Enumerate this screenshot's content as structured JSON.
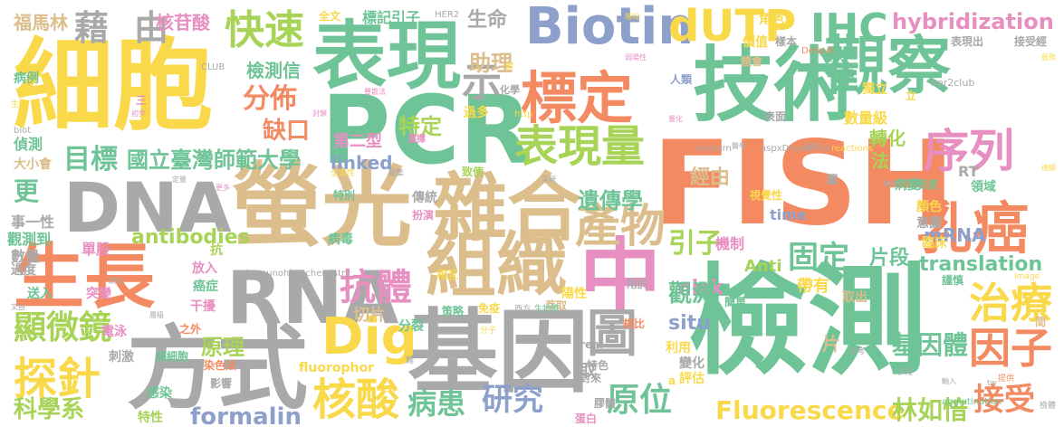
{
  "palette": {
    "yellow": "#f9d94a",
    "orange": "#f48a62",
    "green": "#6ec497",
    "tan": "#dcbd8c",
    "gray": "#a9a9a9",
    "pink": "#e88fc2",
    "blue": "#8da0cb",
    "lime": "#a7d357"
  },
  "words": [
    {
      "text": "細胞",
      "color": "yellow"
    },
    {
      "text": "技術",
      "color": "green"
    },
    {
      "text": "FISH",
      "color": "orange"
    },
    {
      "text": "檢測",
      "color": "green"
    },
    {
      "text": "PCR",
      "color": "green"
    },
    {
      "text": "螢光",
      "color": "tan"
    },
    {
      "text": "基因",
      "color": "gray"
    },
    {
      "text": "方式",
      "color": "gray"
    },
    {
      "text": "生長",
      "color": "orange"
    },
    {
      "text": "表現",
      "color": "green"
    },
    {
      "text": "觀察",
      "color": "green"
    },
    {
      "text": "中",
      "color": "pink"
    },
    {
      "text": "雜合",
      "color": "tan"
    },
    {
      "text": "組織",
      "color": "tan"
    },
    {
      "text": "標定",
      "color": "orange"
    },
    {
      "text": "DNA",
      "color": "gray"
    },
    {
      "text": "RNA",
      "color": "gray"
    },
    {
      "text": "Biotin",
      "color": "blue"
    },
    {
      "text": "乳癌",
      "color": "orange"
    },
    {
      "text": "表現量",
      "color": "lime"
    },
    {
      "text": "序列",
      "color": "pink"
    },
    {
      "text": "產物",
      "color": "tan"
    },
    {
      "text": "Dig",
      "color": "yellow"
    },
    {
      "text": "核酸",
      "color": "yellow"
    },
    {
      "text": "探針",
      "color": "yellow"
    },
    {
      "text": "圖",
      "color": "gray"
    },
    {
      "text": "IHC",
      "color": "green"
    },
    {
      "text": "dUTP",
      "color": "yellow"
    },
    {
      "text": "快速",
      "color": "lime"
    },
    {
      "text": "藉",
      "color": "gray"
    },
    {
      "text": "由",
      "color": "gray"
    },
    {
      "text": "治療",
      "color": "yellow"
    },
    {
      "text": "因子",
      "color": "orange"
    },
    {
      "text": "hybridization",
      "color": "pink"
    },
    {
      "text": "抗體",
      "color": "pink"
    },
    {
      "text": "顯微鏡",
      "color": "lime"
    },
    {
      "text": "研究",
      "color": "blue"
    },
    {
      "text": "病患",
      "color": "green"
    },
    {
      "text": "原位",
      "color": "green"
    },
    {
      "text": "固定",
      "color": "green"
    },
    {
      "text": "接受",
      "color": "orange"
    },
    {
      "text": "分佈",
      "color": "orange"
    },
    {
      "text": "目標",
      "color": "green"
    },
    {
      "text": "國立臺灣師範大學",
      "color": "green"
    },
    {
      "text": "Fluorescence",
      "color": "yellow"
    },
    {
      "text": "林如愔",
      "color": "lime"
    },
    {
      "text": "translation",
      "color": "green"
    },
    {
      "text": "formalin",
      "color": "blue"
    },
    {
      "text": "科學系",
      "color": "lime"
    },
    {
      "text": "原理",
      "color": "lime"
    },
    {
      "text": "遺傳學",
      "color": "green"
    },
    {
      "text": "基因體",
      "color": "green"
    },
    {
      "text": "引子",
      "color": "lime"
    },
    {
      "text": "檢測信",
      "color": "green"
    },
    {
      "text": "示",
      "color": "gray"
    },
    {
      "text": "助理",
      "color": "tan"
    },
    {
      "text": "生命",
      "color": "gray"
    },
    {
      "text": "核苷酸",
      "color": "pink"
    },
    {
      "text": "福馬林",
      "color": "tan"
    },
    {
      "text": "缺口",
      "color": "orange"
    },
    {
      "text": "特定",
      "color": "lime"
    },
    {
      "text": "linked",
      "color": "blue"
    },
    {
      "text": "nick",
      "color": "pink"
    },
    {
      "text": "經由",
      "color": "tan"
    },
    {
      "text": "antibodies",
      "color": "lime"
    },
    {
      "text": "situ",
      "color": "blue"
    },
    {
      "text": "觀測",
      "color": "green"
    },
    {
      "text": "片段",
      "color": "green"
    },
    {
      "text": "Anti",
      "color": "lime"
    },
    {
      "text": "mRNA",
      "color": "blue"
    },
    {
      "text": "轉化",
      "color": "lime"
    },
    {
      "text": "法",
      "color": "lime"
    },
    {
      "text": "更",
      "color": "green"
    },
    {
      "text": "單股",
      "color": "pink"
    },
    {
      "text": "fluorophor",
      "color": "yellow"
    },
    {
      "text": "帶有",
      "color": "yellow"
    },
    {
      "text": "切片",
      "color": "tan"
    },
    {
      "text": "第二型",
      "color": "pink"
    },
    {
      "text": "病毒",
      "color": "green"
    },
    {
      "text": "片",
      "color": "tan"
    },
    {
      "text": "取",
      "color": "gray"
    },
    {
      "text": "數量級",
      "color": "yellow"
    },
    {
      "text": "RT",
      "color": "gray"
    },
    {
      "text": "time",
      "color": "blue"
    },
    {
      "text": "事一性",
      "color": "gray"
    },
    {
      "text": "觀測到",
      "color": "green"
    },
    {
      "text": "數量",
      "color": "gray"
    },
    {
      "text": "過度",
      "color": "gray"
    },
    {
      "text": "大小會",
      "color": "tan"
    },
    {
      "text": "偵測",
      "color": "green"
    },
    {
      "text": "病例",
      "color": "green"
    },
    {
      "text": "標記引子",
      "color": "green"
    },
    {
      "text": "全文",
      "color": "yellow"
    },
    {
      "text": "HER2",
      "color": "gray"
    },
    {
      "text": "角色",
      "color": "yellow"
    },
    {
      "text": "價值",
      "color": "yellow"
    },
    {
      "text": "樣本",
      "color": "gray"
    },
    {
      "text": "體會",
      "color": "tan"
    },
    {
      "text": "表現出",
      "color": "gray"
    },
    {
      "text": "接受經",
      "color": "gray"
    },
    {
      "text": "獨立",
      "color": "yellow"
    },
    {
      "text": "人類",
      "color": "blue"
    },
    {
      "text": "過多",
      "color": "yellow"
    },
    {
      "text": "致使",
      "color": "lime"
    },
    {
      "text": "傳統",
      "color": "gray"
    },
    {
      "text": "扮演",
      "color": "pink"
    },
    {
      "text": "特別",
      "color": "green"
    },
    {
      "text": "突變",
      "color": "pink"
    },
    {
      "text": "放入",
      "color": "pink"
    },
    {
      "text": "癌症",
      "color": "green"
    },
    {
      "text": "干擾",
      "color": "pink"
    },
    {
      "text": "分辨",
      "color": "green"
    },
    {
      "text": "送入",
      "color": "green"
    },
    {
      "text": "電泳",
      "color": "pink"
    },
    {
      "text": "之外",
      "color": "orange"
    },
    {
      "text": "刺激",
      "color": "gray"
    },
    {
      "text": "癌細胞",
      "color": "green"
    },
    {
      "text": "染色法",
      "color": "orange"
    },
    {
      "text": "影響",
      "color": "gray"
    },
    {
      "text": "感染",
      "color": "green"
    },
    {
      "text": "特性",
      "color": "lime"
    },
    {
      "text": "分裂",
      "color": "green"
    },
    {
      "text": "策略",
      "color": "green"
    },
    {
      "text": "免疫",
      "color": "yellow"
    },
    {
      "text": "相互",
      "color": "yellow"
    },
    {
      "text": "特色",
      "color": "gray"
    },
    {
      "text": "對來",
      "color": "gray"
    },
    {
      "text": "real",
      "color": "gray"
    },
    {
      "text": "評估",
      "color": "yellow"
    },
    {
      "text": "變化",
      "color": "gray"
    },
    {
      "text": "利用",
      "color": "yellow"
    },
    {
      "text": "相比",
      "color": "orange"
    },
    {
      "text": "取出",
      "color": "tan"
    },
    {
      "text": "簡單",
      "color": "green"
    },
    {
      "text": "機制",
      "color": "pink"
    },
    {
      "text": "臨床",
      "color": "yellow"
    },
    {
      "text": "意圖",
      "color": "gray"
    },
    {
      "text": "顏色",
      "color": "yellow"
    },
    {
      "text": "視覺性",
      "color": "yellow"
    },
    {
      "text": "病變",
      "color": "green"
    },
    {
      "text": "表皮",
      "color": "green"
    },
    {
      "text": "領域",
      "color": "green"
    },
    {
      "text": "單",
      "color": "gray"
    },
    {
      "text": "表面",
      "color": "gray"
    },
    {
      "text": "陽性",
      "color": "yellow"
    },
    {
      "text": "用於",
      "color": "gray"
    },
    {
      "text": "萃取",
      "color": "tan"
    },
    {
      "text": "膠體",
      "color": "gray"
    },
    {
      "text": "蛋白",
      "color": "pink"
    },
    {
      "text": "謹慎",
      "color": "green"
    },
    {
      "text": "間",
      "color": "tan"
    },
    {
      "text": "a",
      "color": "yellow"
    },
    {
      "text": "抗",
      "color": "lime"
    },
    {
      "text": "三",
      "color": "pink"
    },
    {
      "text": "立",
      "color": "yellow"
    },
    {
      "text": "化學",
      "color": "gray"
    },
    {
      "text": "immunohistochemistry",
      "color": "gray"
    },
    {
      "text": "agglutination",
      "color": "green"
    },
    {
      "text": "her2club",
      "color": "gray"
    },
    {
      "text": "CLUB",
      "color": "gray"
    },
    {
      "text": "western",
      "color": "gray"
    },
    {
      "text": "aspxDrosophila",
      "color": "gray"
    },
    {
      "text": "reactions",
      "color": "yellow"
    },
    {
      "text": "http",
      "color": "yellow"
    },
    {
      "text": "Default",
      "color": "orange"
    },
    {
      "text": "blot",
      "color": "gray"
    },
    {
      "text": "Image",
      "color": "yellow"
    },
    {
      "text": "生物",
      "color": "yellow"
    },
    {
      "text": "全面性",
      "color": "yellow"
    },
    {
      "text": "凝集",
      "color": "gray"
    },
    {
      "text": "分子",
      "color": "yellow"
    },
    {
      "text": "生物體",
      "color": "green"
    },
    {
      "text": "西方",
      "color": "gray"
    },
    {
      "text": "參考",
      "color": "gray"
    },
    {
      "text": "手段",
      "color": "gray"
    },
    {
      "text": "提供",
      "color": "orange"
    },
    {
      "text": "檢體",
      "color": "gray"
    },
    {
      "text": "難",
      "color": "gray"
    },
    {
      "text": "層級",
      "color": "gray"
    },
    {
      "text": "網站",
      "color": "gray"
    },
    {
      "text": "文由",
      "color": "gray"
    },
    {
      "text": "定量",
      "color": "gray"
    },
    {
      "text": "更多",
      "color": "pink"
    },
    {
      "text": "呈現",
      "color": "gray"
    },
    {
      "text": "量化",
      "color": "pink"
    },
    {
      "text": "弱陽性",
      "color": "pink"
    },
    {
      "text": "操作",
      "color": "gray"
    },
    {
      "text": "醫學",
      "color": "gray"
    },
    {
      "text": "轉由",
      "color": "gray"
    },
    {
      "text": "階段",
      "color": "yellow"
    },
    {
      "text": "連續",
      "color": "yellow"
    },
    {
      "text": "體",
      "color": "yellow"
    },
    {
      "text": "初步",
      "color": "pink"
    },
    {
      "text": "封鎖",
      "color": "pink"
    },
    {
      "text": "選擇",
      "color": "pink"
    },
    {
      "text": "豐散法",
      "color": "pink"
    },
    {
      "text": "tw",
      "color": "gray"
    },
    {
      "text": "輸入",
      "color": "gray"
    },
    {
      "text": "服務",
      "color": "yellow"
    }
  ]
}
